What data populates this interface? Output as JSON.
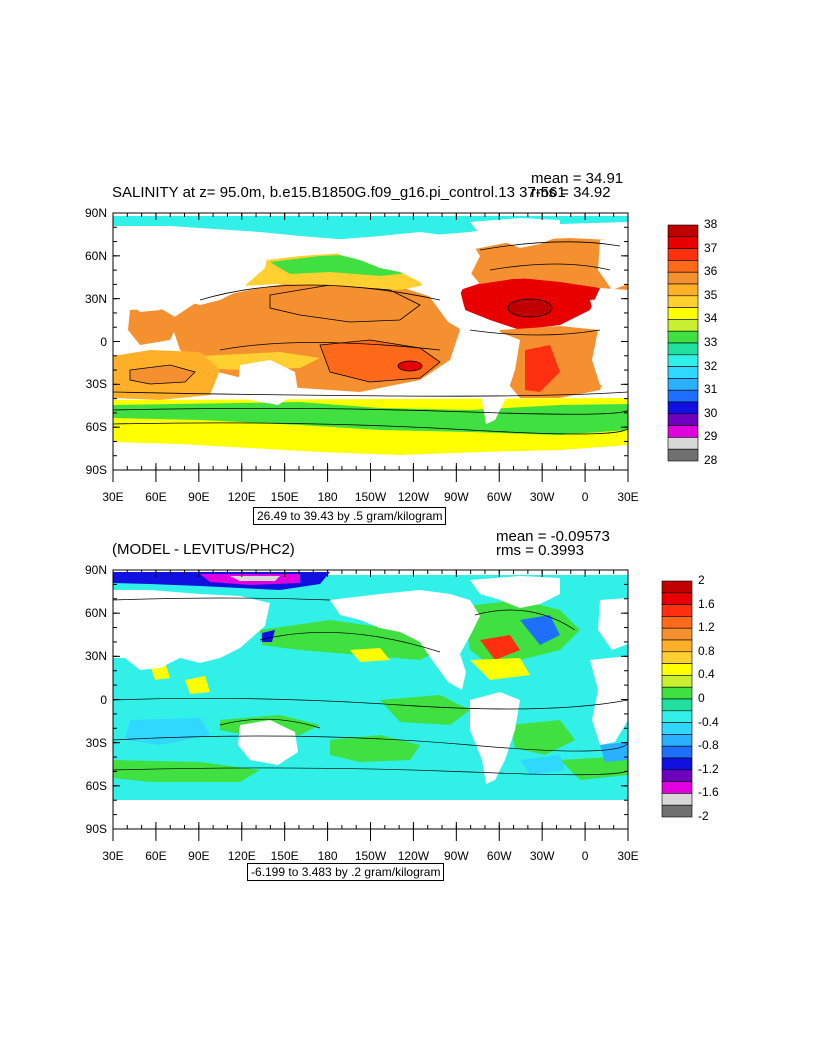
{
  "panels": [
    {
      "title": "SALINITY at z=  95.0m, b.e15.B1850G.f09_g16.pi_control.13  37-561",
      "stats": {
        "mean": "mean = 34.91",
        "rms": "rms = 34.92"
      },
      "range_label": "26.49 to 39.43 by .5 gram/kilogram",
      "lat_labels": [
        "90N",
        "60N",
        "30N",
        "0",
        "30S",
        "60S",
        "90S"
      ],
      "lon_labels": [
        "30E",
        "60E",
        "90E",
        "120E",
        "150E",
        "180",
        "150W",
        "120W",
        "90W",
        "60W",
        "30W",
        "0",
        "30E"
      ],
      "colorbar": {
        "labels": [
          "38",
          "37",
          "36",
          "35",
          "34",
          "33",
          "32",
          "31",
          "30",
          "29",
          "28"
        ],
        "colors": [
          "#c00000",
          "#e80000",
          "#ff3010",
          "#ff6a1a",
          "#f59030",
          "#ffb028",
          "#ffd030",
          "#ffff00",
          "#c8f030",
          "#40e040",
          "#20e0a0",
          "#30f0e8",
          "#30d8ff",
          "#2ab0ff",
          "#1f6fff",
          "#1010e0",
          "#7000c0",
          "#e000e0",
          "#d8d8d8",
          "#707070"
        ]
      }
    },
    {
      "title": "(MODEL - LEVITUS/PHC2)",
      "stats": {
        "mean": "mean = -0.09573",
        "rms": "rms = 0.3993"
      },
      "range_label": "-6.199 to 3.483 by .2 gram/kilogram",
      "lat_labels": [
        "90N",
        "60N",
        "30N",
        "0",
        "30S",
        "60S",
        "90S"
      ],
      "lon_labels": [
        "30E",
        "60E",
        "90E",
        "120E",
        "150E",
        "180",
        "150W",
        "120W",
        "90W",
        "60W",
        "30W",
        "0",
        "30E"
      ],
      "colorbar": {
        "labels": [
          "2",
          "1.6",
          "1.2",
          "0.8",
          "0.4",
          "0",
          "-0.4",
          "-0.8",
          "-1.2",
          "-1.6",
          "-2"
        ],
        "colors": [
          "#c00000",
          "#e80000",
          "#ff3010",
          "#ff6a1a",
          "#f59030",
          "#ffb028",
          "#ffd030",
          "#ffff00",
          "#c8f030",
          "#40e040",
          "#20e0a0",
          "#30f0e8",
          "#30d8ff",
          "#2ab0ff",
          "#1f6fff",
          "#1010e0",
          "#7000c0",
          "#e000e0",
          "#d8d8d8",
          "#707070"
        ]
      }
    }
  ]
}
